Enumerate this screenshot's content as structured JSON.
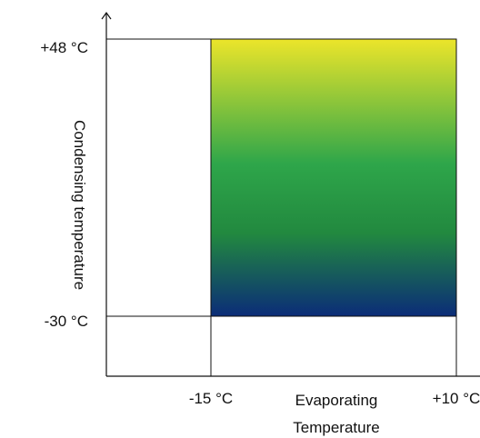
{
  "chart_data": {
    "type": "area",
    "title": "",
    "xlabel_line1": "Evaporating",
    "xlabel_line2": "Temperature",
    "ylabel": "Condensing temperature",
    "x_ticks": [
      {
        "value": -15,
        "label": "-15 °C"
      },
      {
        "value": 10,
        "label": "+10 °C"
      }
    ],
    "y_ticks": [
      {
        "value": 48,
        "label": "+48 °C"
      },
      {
        "value": -30,
        "label": "-30 °C"
      }
    ],
    "region": {
      "x_min": -15,
      "x_max": 10,
      "y_min": -30,
      "y_max": 48
    },
    "gradient_colors": {
      "top": "#ece52a",
      "middle": "#2ea64a",
      "bottom": "#0b2c78"
    },
    "grid": false
  }
}
